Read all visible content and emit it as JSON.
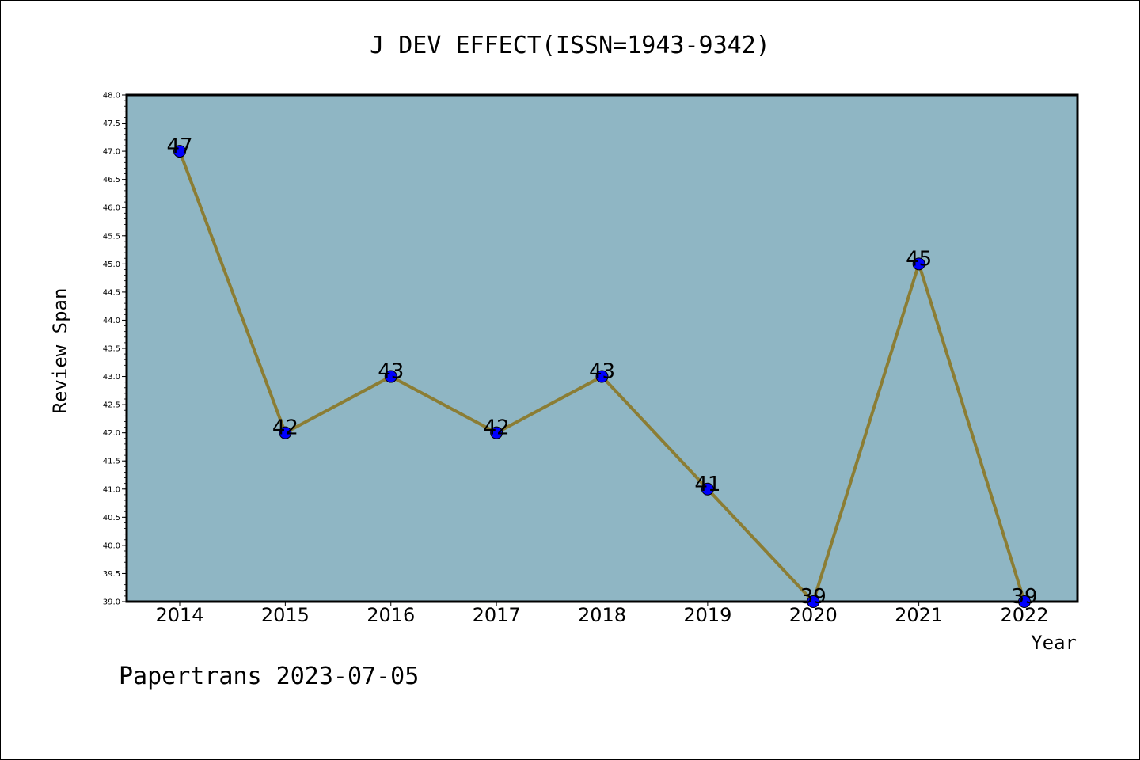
{
  "chart_data": {
    "type": "line",
    "title": "J DEV EFFECT(ISSN=1943-9342)",
    "xlabel": "Year",
    "ylabel": "Review Span",
    "categories": [
      "2014",
      "2015",
      "2016",
      "2017",
      "2018",
      "2019",
      "2020",
      "2021",
      "2022"
    ],
    "series": [
      {
        "values": [
          47,
          42,
          43,
          42,
          43,
          41,
          39,
          45,
          39
        ]
      }
    ],
    "data_labels": [
      "47",
      "42",
      "43",
      "42",
      "43",
      "41",
      "39",
      "45",
      "39"
    ],
    "ylim": [
      39.0,
      48.0
    ],
    "yticks": [
      "39.0",
      "39.5",
      "40.0",
      "40.5",
      "41.0",
      "41.5",
      "42.0",
      "42.5",
      "43.0",
      "43.5",
      "44.0",
      "44.5",
      "45.0",
      "45.5",
      "46.0",
      "46.5",
      "47.0",
      "47.5",
      "48.0"
    ],
    "grid": false,
    "colors": {
      "plot_background": "#8fb6c4",
      "line": "#8b7d34",
      "marker": "#0000ff"
    }
  },
  "footer": "Papertrans 2023-07-05"
}
